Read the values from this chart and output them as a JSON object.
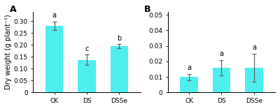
{
  "panel_A": {
    "label": "A",
    "categories": [
      "CK",
      "DS",
      "DSSe"
    ],
    "values": [
      0.28,
      0.137,
      0.195
    ],
    "errors": [
      0.018,
      0.022,
      0.008
    ],
    "sig_labels": [
      "a",
      "c",
      "b"
    ],
    "ylabel": "Dry weight (g plant⁻¹)",
    "ylim": [
      0,
      0.34
    ],
    "yticks": [
      0,
      0.05,
      0.1,
      0.15,
      0.2,
      0.25,
      0.3
    ],
    "ytick_labels": [
      "0",
      "0.05",
      "0.10",
      "0.15",
      "0.20",
      "0.25",
      "0.30"
    ]
  },
  "panel_B": {
    "label": "B",
    "categories": [
      "CK",
      "DS",
      "DSSe"
    ],
    "values": [
      0.01,
      0.016,
      0.016
    ],
    "errors": [
      0.002,
      0.005,
      0.009
    ],
    "sig_labels": [
      "a",
      "a",
      "a"
    ],
    "ylim": [
      0,
      0.052
    ],
    "yticks": [
      0,
      0.01,
      0.02,
      0.03,
      0.04,
      0.05
    ],
    "ytick_labels": [
      "0",
      "0.01",
      "0.02",
      "0.03",
      "0.04",
      "0.05"
    ]
  },
  "bar_color": "#4EEEED",
  "bar_width": 0.55,
  "background_color": "#ffffff",
  "error_color": "#666666",
  "sig_fontsize": 7,
  "ylabel_fontsize": 7,
  "tick_fontsize": 6.5,
  "panel_label_fontsize": 9
}
